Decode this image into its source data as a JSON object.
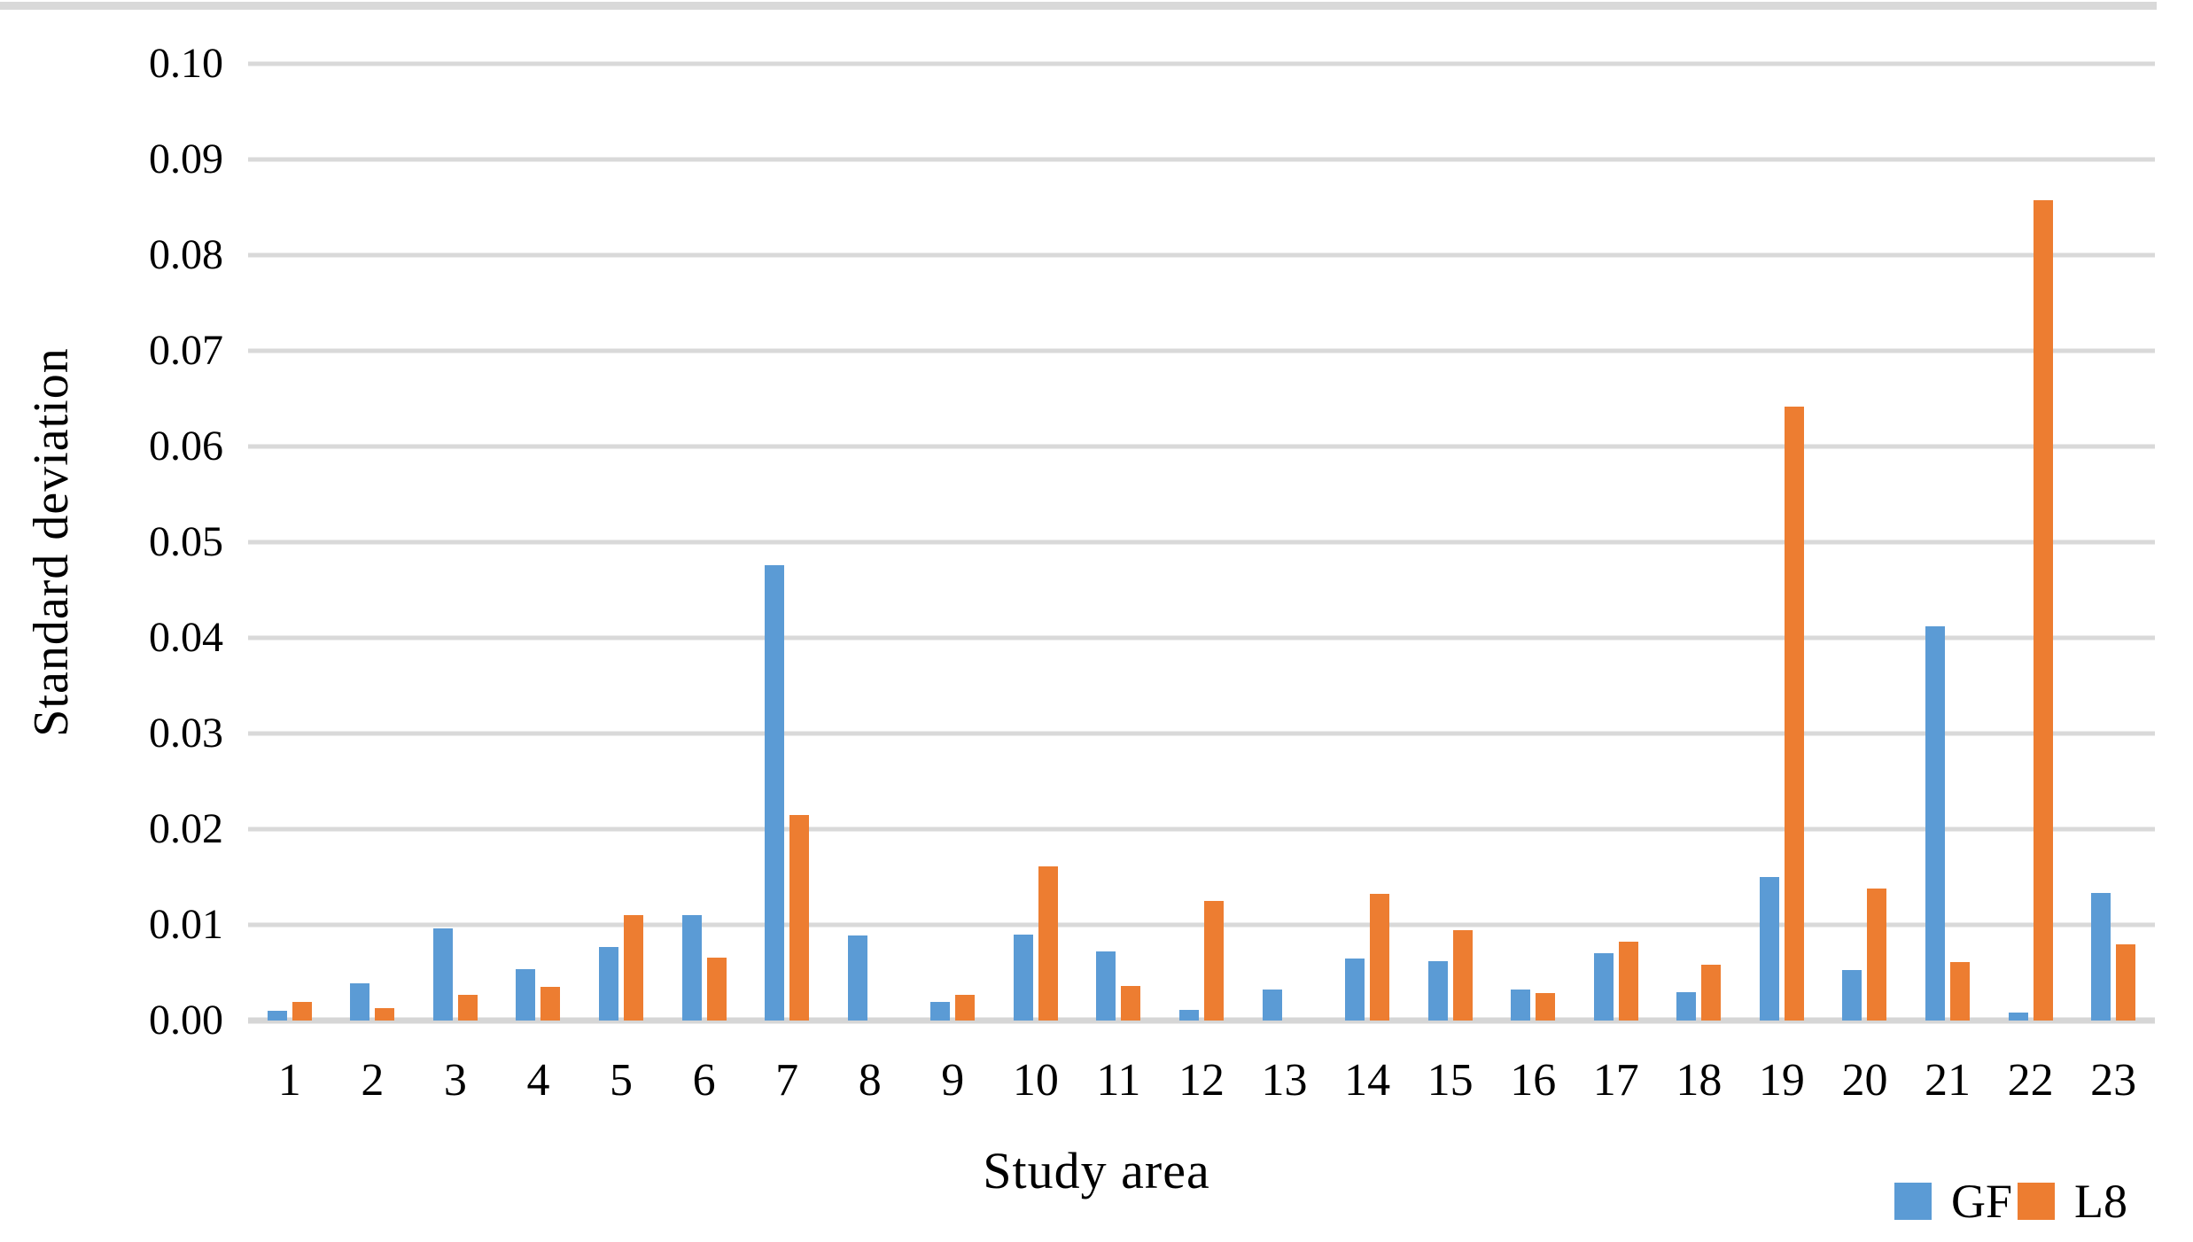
{
  "figure": {
    "background": "#ffffff",
    "top_border_color": "#d9d9d9",
    "gridline_color": "#d9d9d9",
    "text_color": "#000000"
  },
  "chart_data": {
    "type": "bar",
    "title": "",
    "xlabel": "Study area",
    "ylabel": "Standard deviation",
    "categories": [
      "1",
      "2",
      "3",
      "4",
      "5",
      "6",
      "7",
      "8",
      "9",
      "10",
      "11",
      "12",
      "13",
      "14",
      "15",
      "16",
      "17",
      "18",
      "19",
      "20",
      "21",
      "22",
      "23"
    ],
    "series": [
      {
        "name": "GF",
        "color": "#5B9BD5",
        "values": [
          0.001,
          0.0039,
          0.0096,
          0.0054,
          0.0077,
          0.011,
          0.0476,
          0.0089,
          0.0019,
          0.009,
          0.0072,
          0.0011,
          0.0032,
          0.0065,
          0.0062,
          0.0032,
          0.007,
          0.003,
          0.015,
          0.0053,
          0.0412,
          0.0008,
          0.0133
        ]
      },
      {
        "name": "L8",
        "color": "#ED7D31",
        "values": [
          0.0019,
          0.0013,
          0.0027,
          0.0035,
          0.011,
          0.0066,
          0.0215,
          0.0,
          0.0027,
          0.0161,
          0.0036,
          0.0125,
          0.0,
          0.0132,
          0.0094,
          0.0029,
          0.0082,
          0.0058,
          0.0642,
          0.0138,
          0.0061,
          0.0857,
          0.008
        ]
      }
    ],
    "ylim": [
      0,
      0.1
    ],
    "ytick_step": 0.01,
    "ytick_labels_top_to_bottom": [
      "0.10",
      "0.09",
      "0.08",
      "0.07",
      "0.06",
      "0.05",
      "0.04",
      "0.03",
      "0.02",
      "0.01",
      "0.00"
    ],
    "grid": "horizontal",
    "legend_position": "bottom-right"
  }
}
